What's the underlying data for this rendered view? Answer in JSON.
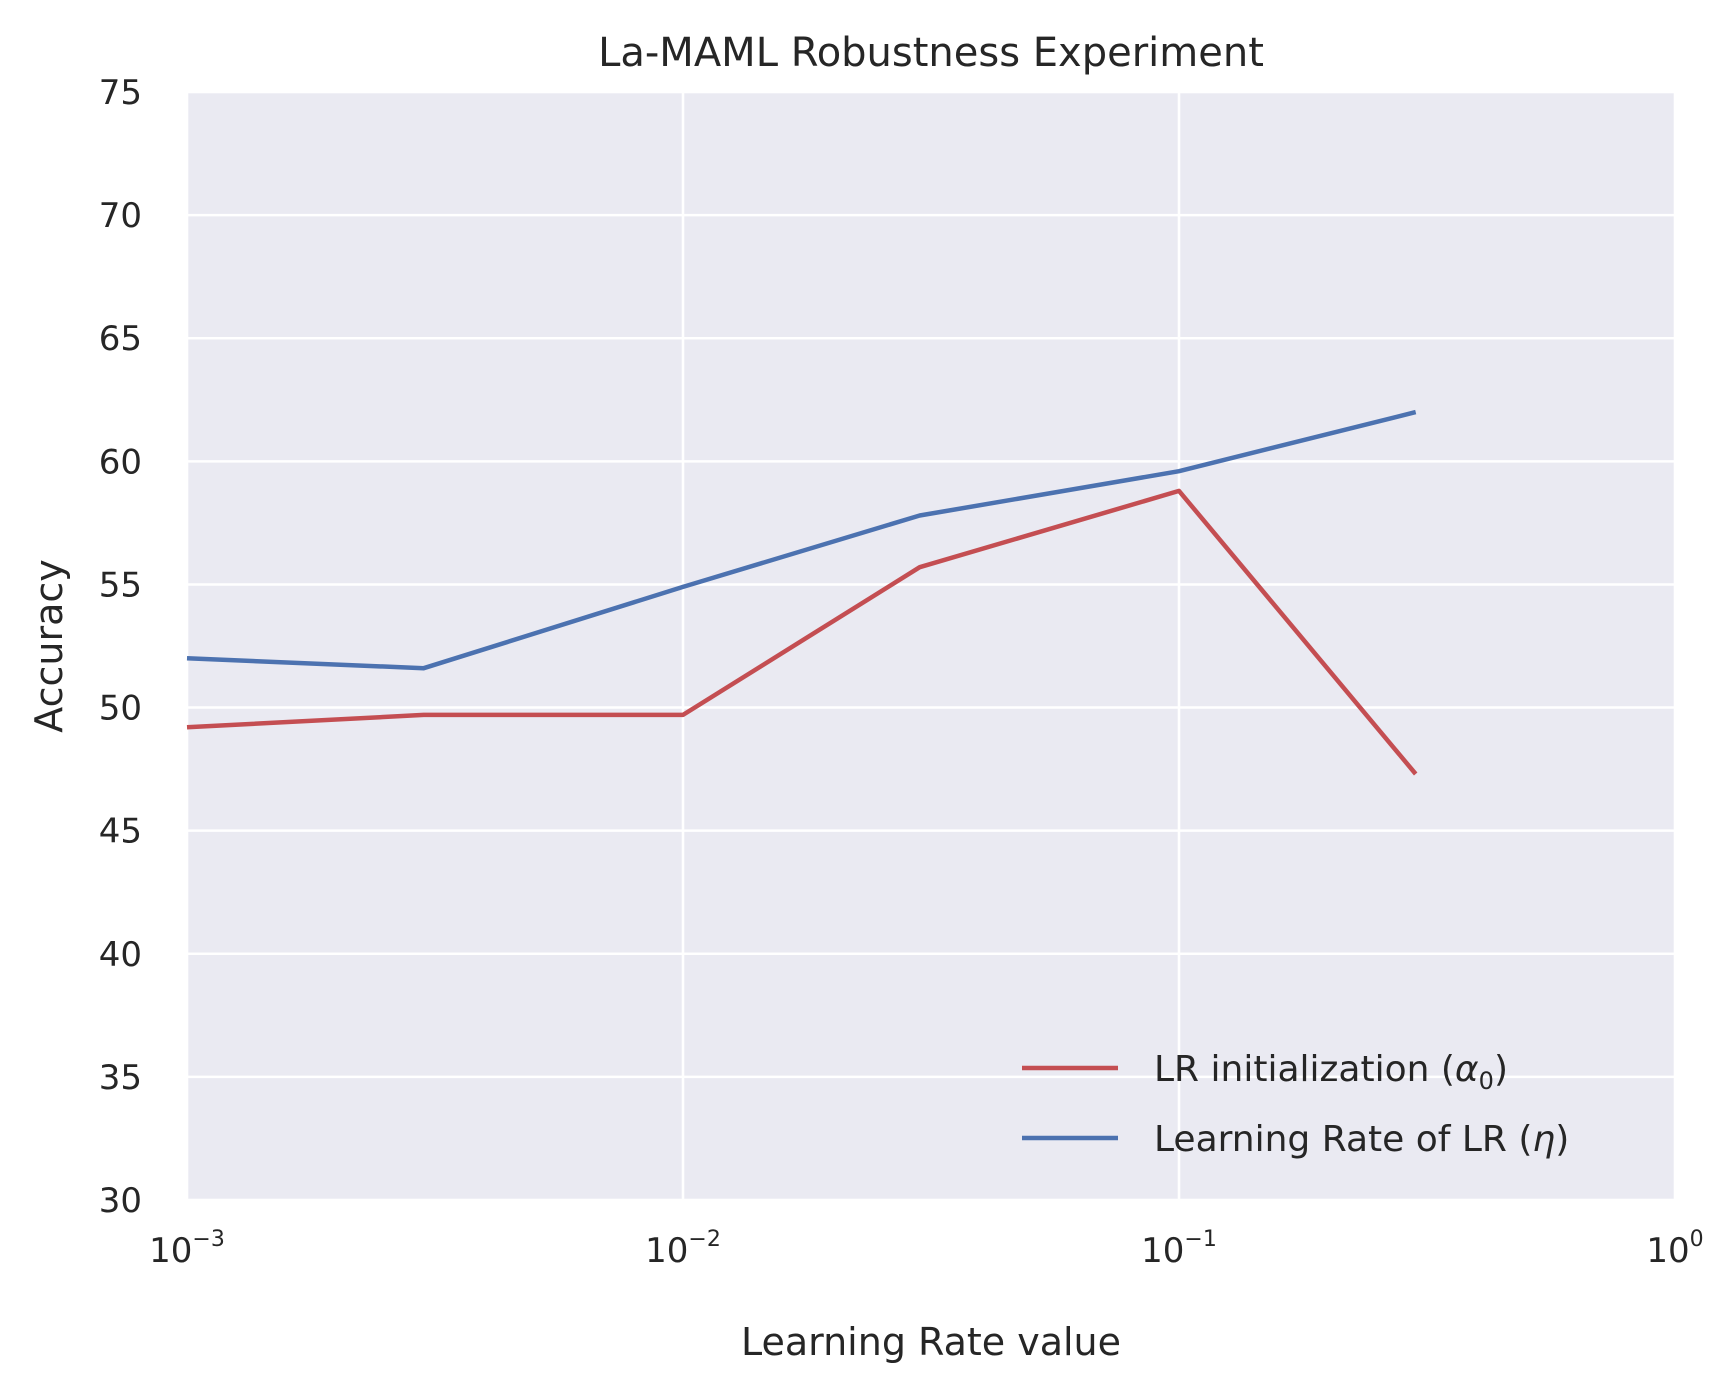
{
  "chart_data": {
    "type": "line",
    "title": "La-MAML Robustness Experiment",
    "xlabel": "Learning Rate value",
    "ylabel": "Accuracy",
    "xscale": "log",
    "xlim": [
      0.001,
      1
    ],
    "ylim": [
      30,
      75
    ],
    "grid": true,
    "legend_position": "lower-right",
    "x_ticks": [
      {
        "value": 0.001,
        "base": "10",
        "exp": "−3"
      },
      {
        "value": 0.01,
        "base": "10",
        "exp": "−2"
      },
      {
        "value": 0.1,
        "base": "10",
        "exp": "−1"
      },
      {
        "value": 1,
        "base": "10",
        "exp": "0"
      }
    ],
    "y_ticks": [
      30,
      35,
      40,
      45,
      50,
      55,
      60,
      65,
      70,
      75
    ],
    "series": [
      {
        "name": "LR initialization",
        "symbol": "α",
        "subscript": "0",
        "color": "#c44e52",
        "x": [
          0.001,
          0.003,
          0.01,
          0.03,
          0.1,
          0.3
        ],
        "y": [
          49.2,
          49.7,
          49.7,
          55.7,
          58.8,
          47.3
        ]
      },
      {
        "name": "Learning Rate of LR",
        "symbol": "η",
        "subscript": "",
        "color": "#4c72b0",
        "x": [
          0.001,
          0.003,
          0.01,
          0.03,
          0.1,
          0.3
        ],
        "y": [
          52.0,
          51.6,
          54.9,
          57.8,
          59.6,
          62.0
        ]
      }
    ]
  },
  "colors": {
    "plot_background": "#eaeaf2",
    "grid": "#ffffff",
    "text": "#262626"
  }
}
